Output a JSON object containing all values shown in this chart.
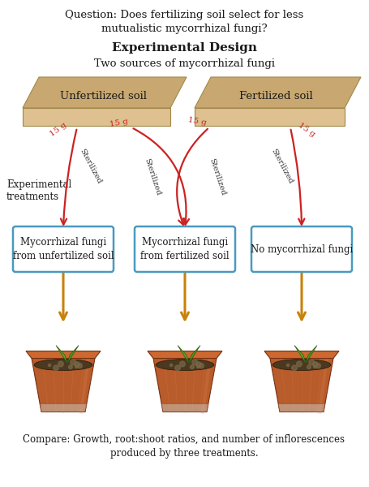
{
  "title_question": "Question: Does fertilizing soil select for less\nmutualistic mycorrhizal fungi?",
  "title_exp": "Experimental Design",
  "subtitle": "Two sources of mycorrhizal fungi",
  "label_unfertilized": "Unfertilized soil",
  "label_fertilized": "Fertilized soil",
  "label_experimental": "Experimental\ntreatments",
  "label_15g": "15 g",
  "label_sterilized": "Sterilized",
  "box1_text": "Mycorrhizal fungi\nfrom unfertilized soil",
  "box2_text": "Mycorrhizal fungi\nfrom fertilized soil",
  "box3_text": "No mycorrhizal fungi",
  "compare_text": "Compare: Growth, root:shoot ratios, and number of inflorescences\nproduced by three treatments.",
  "bg_color": "#ffffff",
  "soil_top_color": "#c8a870",
  "soil_front_color": "#dfc090",
  "soil_edge_color": "#a08848",
  "arrow_color_red": "#cc2222",
  "arrow_color_gold": "#c8820a",
  "box_edge_color": "#4a9abf",
  "text_color": "#1a1a1a",
  "sterilized_color": "#333333",
  "font_size_title": 9.5,
  "font_size_exp": 11,
  "font_size_sub": 9.5,
  "font_size_soil": 9.5,
  "font_size_exp_treat": 8.5,
  "font_size_15g": 7.5,
  "font_size_sterilized": 7,
  "font_size_box": 8.5,
  "font_size_compare": 8.5
}
